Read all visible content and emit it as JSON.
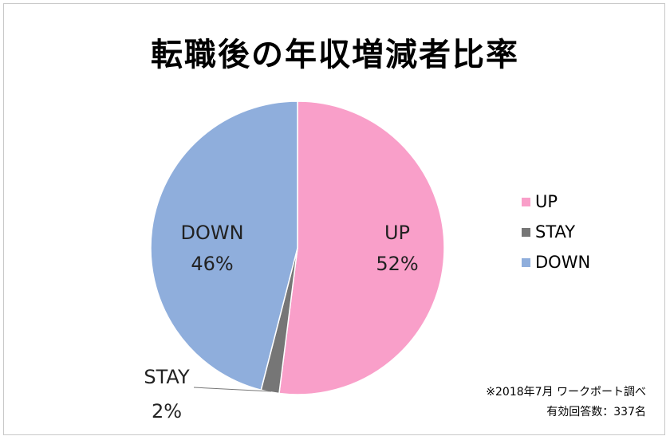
{
  "chart_data": {
    "type": "pie",
    "title": "転職後の年収増減者比率",
    "slices": [
      {
        "name": "UP",
        "value": 52,
        "label": "52%",
        "color": "#f99fc9"
      },
      {
        "name": "STAY",
        "value": 2,
        "label": "2%",
        "color": "#767676"
      },
      {
        "name": "DOWN",
        "value": 46,
        "label": "46%",
        "color": "#8faedc"
      }
    ],
    "legend_position": "right",
    "annotations": [
      "※2018年7月 ワークポート調べ",
      "有効回答数：337名"
    ]
  }
}
